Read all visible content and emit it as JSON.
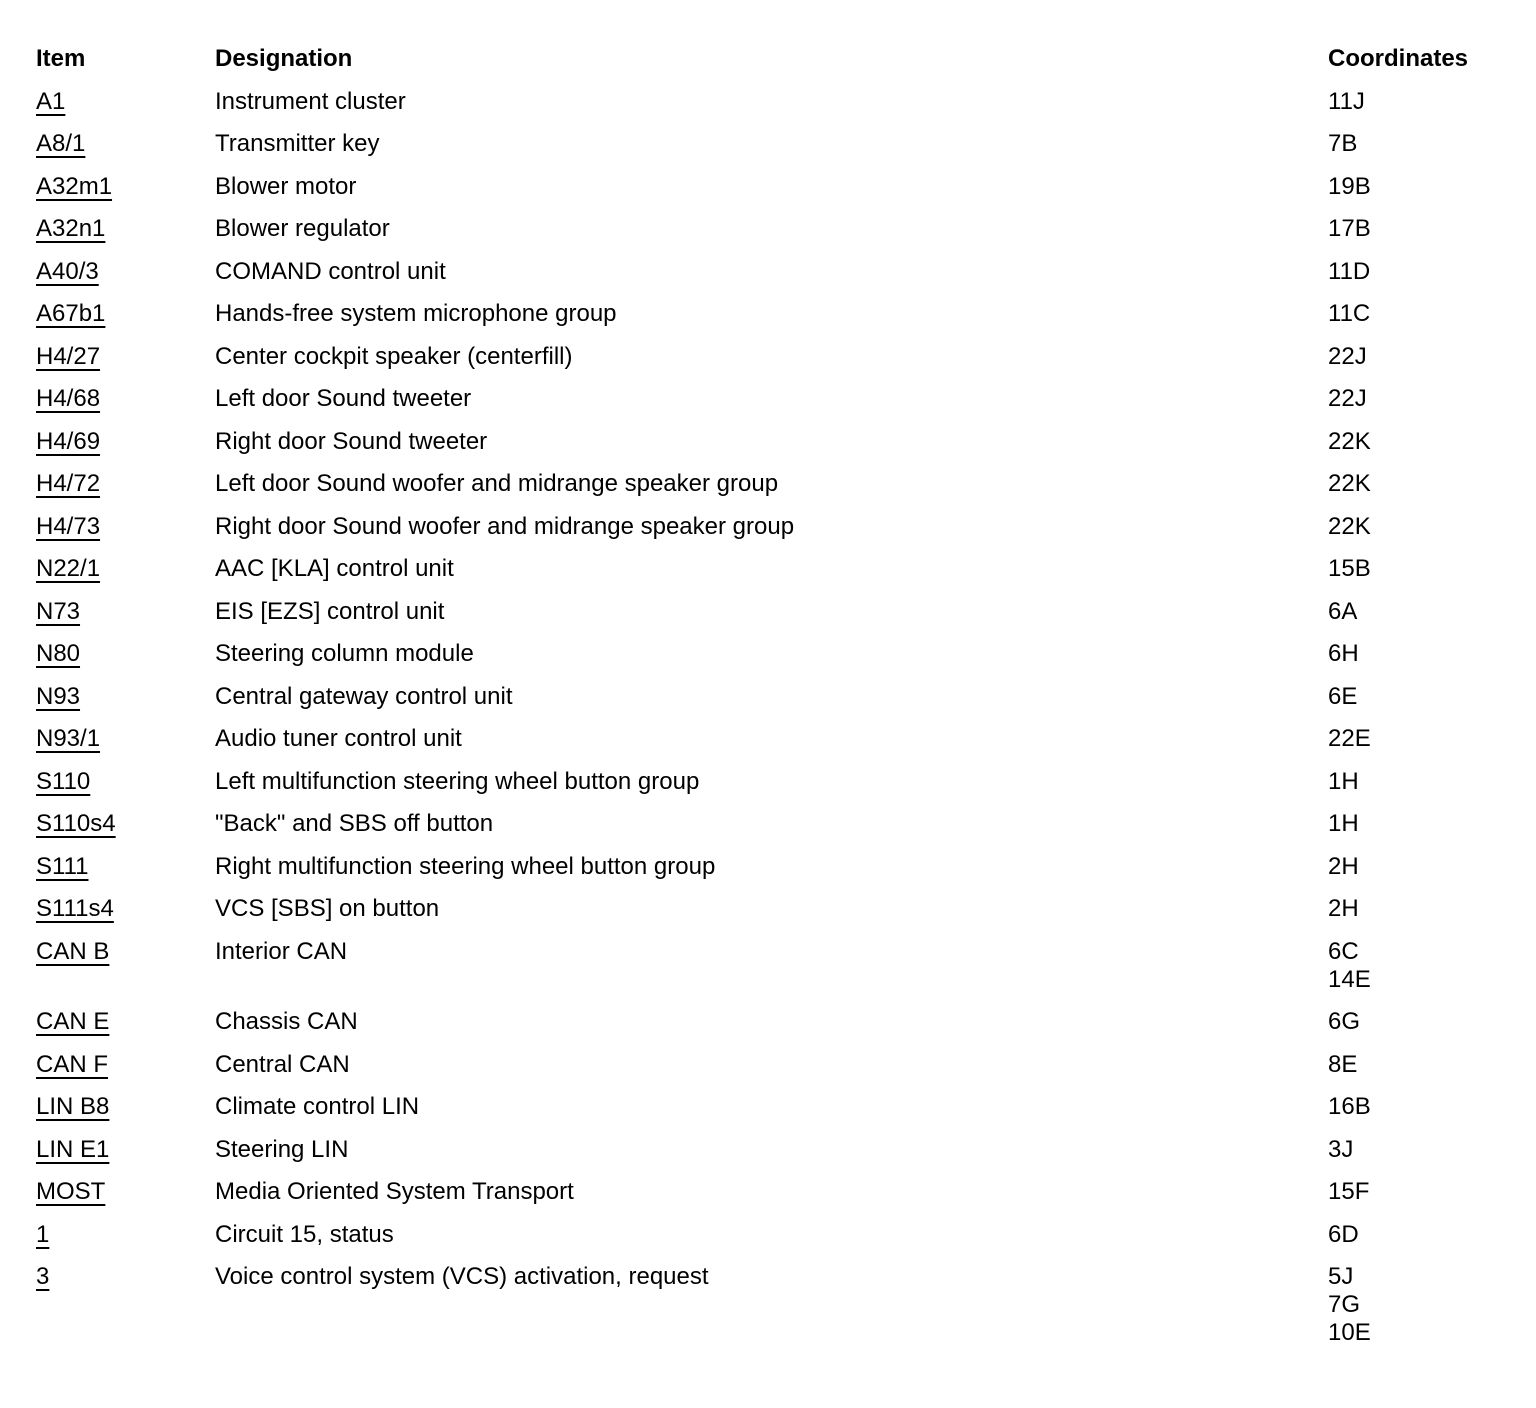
{
  "colors": {
    "text": "#000000",
    "background": "#ffffff"
  },
  "table": {
    "headers": {
      "item": "Item",
      "designation": "Designation",
      "coordinates": "Coordinates"
    },
    "rows": [
      {
        "item": "A1",
        "designation": "Instrument cluster",
        "coordinates": [
          "11J"
        ]
      },
      {
        "item": "A8/1",
        "designation": "Transmitter key",
        "coordinates": [
          "7B"
        ]
      },
      {
        "item": "A32m1",
        "designation": "Blower motor",
        "coordinates": [
          "19B"
        ]
      },
      {
        "item": "A32n1",
        "designation": "Blower regulator",
        "coordinates": [
          "17B"
        ]
      },
      {
        "item": "A40/3",
        "designation": "COMAND control unit",
        "coordinates": [
          "11D"
        ]
      },
      {
        "item": "A67b1",
        "designation": "Hands-free system microphone group",
        "coordinates": [
          "11C"
        ]
      },
      {
        "item": "H4/27",
        "designation": "Center cockpit speaker (centerfill)",
        "coordinates": [
          "22J"
        ]
      },
      {
        "item": "H4/68",
        "designation": "Left door Sound tweeter",
        "coordinates": [
          "22J"
        ]
      },
      {
        "item": "H4/69",
        "designation": "Right door Sound tweeter",
        "coordinates": [
          "22K"
        ]
      },
      {
        "item": "H4/72",
        "designation": "Left door Sound woofer and midrange speaker group",
        "coordinates": [
          "22K"
        ]
      },
      {
        "item": "H4/73",
        "designation": "Right door Sound woofer and midrange speaker group",
        "coordinates": [
          "22K"
        ]
      },
      {
        "item": "N22/1",
        "designation": "AAC [KLA] control unit",
        "coordinates": [
          "15B"
        ]
      },
      {
        "item": "N73",
        "designation": "EIS [EZS] control unit",
        "coordinates": [
          "6A"
        ]
      },
      {
        "item": "N80",
        "designation": "Steering column module",
        "coordinates": [
          "6H"
        ]
      },
      {
        "item": "N93",
        "designation": "Central gateway control unit",
        "coordinates": [
          "6E"
        ]
      },
      {
        "item": "N93/1",
        "designation": "Audio tuner control unit",
        "coordinates": [
          "22E"
        ]
      },
      {
        "item": "S110",
        "designation": "Left multifunction steering wheel button group",
        "coordinates": [
          "1H"
        ]
      },
      {
        "item": "S110s4",
        "designation": "\"Back\" and SBS off button",
        "coordinates": [
          "1H"
        ]
      },
      {
        "item": "S111",
        "designation": "Right multifunction steering wheel button group",
        "coordinates": [
          "2H"
        ]
      },
      {
        "item": "S111s4",
        "designation": "VCS [SBS] on button",
        "coordinates": [
          "2H"
        ]
      },
      {
        "item": "CAN B",
        "designation": "Interior CAN",
        "coordinates": [
          "6C",
          "14E"
        ]
      },
      {
        "item": "CAN E",
        "designation": "Chassis CAN",
        "coordinates": [
          "6G"
        ]
      },
      {
        "item": "CAN F",
        "designation": "Central CAN",
        "coordinates": [
          "8E"
        ]
      },
      {
        "item": "LIN B8",
        "designation": "Climate control LIN",
        "coordinates": [
          "16B"
        ]
      },
      {
        "item": "LIN E1",
        "designation": "Steering LIN",
        "coordinates": [
          "3J"
        ]
      },
      {
        "item": "MOST",
        "designation": "Media Oriented System Transport",
        "coordinates": [
          "15F"
        ]
      },
      {
        "item": "1",
        "designation": "Circuit 15, status",
        "coordinates": [
          "6D"
        ]
      },
      {
        "item": "3",
        "designation": "Voice control system (VCS) activation, request",
        "coordinates": [
          "5J",
          "7G",
          "10E"
        ]
      }
    ]
  }
}
